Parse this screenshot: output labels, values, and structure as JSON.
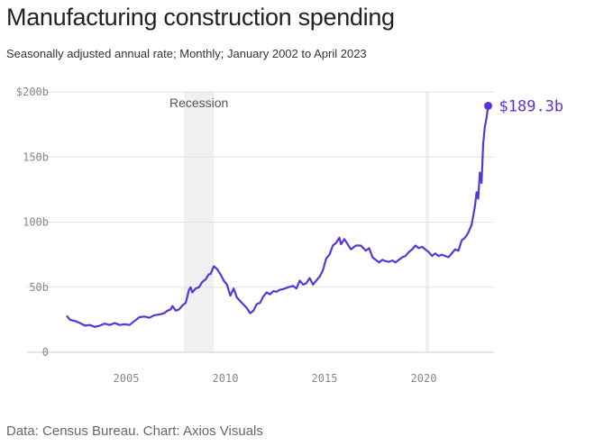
{
  "title": "Manufacturing construction spending",
  "subtitle": "Seasonally adjusted annual rate; Monthly; January 2002 to April 2023",
  "source": "Data: Census Bureau. Chart: Axios Visuals",
  "chart_data": {
    "type": "line",
    "title": "Manufacturing construction spending",
    "xlabel": "",
    "ylabel": "",
    "unit": "billions of dollars",
    "xlim": [
      "2002-01",
      "2023-04"
    ],
    "ylim": [
      0,
      200
    ],
    "grid": true,
    "y_ticks": [
      0,
      50,
      100,
      150,
      200
    ],
    "y_tick_labels": [
      "0",
      "50b",
      "100b",
      "150b",
      "$200b"
    ],
    "x_ticks": [
      2005,
      2010,
      2015,
      2020
    ],
    "x_tick_labels": [
      "2005",
      "2010",
      "2015",
      "2020"
    ],
    "line_color": "#5a35d6",
    "shaded_periods": [
      {
        "label": "Recession",
        "start": "2007-12",
        "end": "2009-06"
      },
      {
        "label": "",
        "start": "2020-02",
        "end": "2020-04"
      }
    ],
    "end_label": "$189.3b",
    "series": [
      {
        "points": [
          [
            "2002-01",
            28
          ],
          [
            "2002-03",
            25
          ],
          [
            "2002-06",
            24
          ],
          [
            "2002-09",
            22.5
          ],
          [
            "2002-12",
            20.5
          ],
          [
            "2003-03",
            21
          ],
          [
            "2003-06",
            19.5
          ],
          [
            "2003-09",
            20.5
          ],
          [
            "2003-12",
            22
          ],
          [
            "2004-03",
            21
          ],
          [
            "2004-06",
            22.5
          ],
          [
            "2004-09",
            21
          ],
          [
            "2004-12",
            21.5
          ],
          [
            "2005-03",
            21
          ],
          [
            "2005-06",
            24
          ],
          [
            "2005-09",
            27
          ],
          [
            "2005-12",
            27.5
          ],
          [
            "2006-03",
            26.5
          ],
          [
            "2006-06",
            28.5
          ],
          [
            "2006-09",
            29
          ],
          [
            "2006-12",
            30
          ],
          [
            "2007-02",
            32
          ],
          [
            "2007-04",
            33
          ],
          [
            "2007-05",
            35.5
          ],
          [
            "2007-07",
            32
          ],
          [
            "2007-09",
            33
          ],
          [
            "2007-11",
            36
          ],
          [
            "2008-01",
            38
          ],
          [
            "2008-03",
            48
          ],
          [
            "2008-04",
            50
          ],
          [
            "2008-05",
            46
          ],
          [
            "2008-07",
            49
          ],
          [
            "2008-09",
            50
          ],
          [
            "2008-11",
            54
          ],
          [
            "2009-01",
            56
          ],
          [
            "2009-03",
            60
          ],
          [
            "2009-04",
            60
          ],
          [
            "2009-06",
            66
          ],
          [
            "2009-08",
            64
          ],
          [
            "2009-10",
            60
          ],
          [
            "2009-12",
            55
          ],
          [
            "2010-02",
            52
          ],
          [
            "2010-04",
            43.5
          ],
          [
            "2010-06",
            49
          ],
          [
            "2010-08",
            42
          ],
          [
            "2010-11",
            38
          ],
          [
            "2011-02",
            34
          ],
          [
            "2011-04",
            30
          ],
          [
            "2011-06",
            32
          ],
          [
            "2011-08",
            37
          ],
          [
            "2011-10",
            38
          ],
          [
            "2011-12",
            43
          ],
          [
            "2012-02",
            46
          ],
          [
            "2012-04",
            44.5
          ],
          [
            "2012-06",
            47
          ],
          [
            "2012-08",
            46.5
          ],
          [
            "2012-10",
            48
          ],
          [
            "2012-12",
            48.5
          ],
          [
            "2013-03",
            50
          ],
          [
            "2013-06",
            51
          ],
          [
            "2013-08",
            49
          ],
          [
            "2013-10",
            55
          ],
          [
            "2013-12",
            52
          ],
          [
            "2014-02",
            53
          ],
          [
            "2014-04",
            57
          ],
          [
            "2014-06",
            52
          ],
          [
            "2014-08",
            55
          ],
          [
            "2014-10",
            58
          ],
          [
            "2014-12",
            63
          ],
          [
            "2015-02",
            72
          ],
          [
            "2015-04",
            75
          ],
          [
            "2015-06",
            82
          ],
          [
            "2015-08",
            84
          ],
          [
            "2015-10",
            88
          ],
          [
            "2015-11",
            83
          ],
          [
            "2016-01",
            87
          ],
          [
            "2016-03",
            83
          ],
          [
            "2016-05",
            79
          ],
          [
            "2016-08",
            82
          ],
          [
            "2016-11",
            82
          ],
          [
            "2017-02",
            78
          ],
          [
            "2017-04",
            80
          ],
          [
            "2017-06",
            73
          ],
          [
            "2017-08",
            71
          ],
          [
            "2017-10",
            69
          ],
          [
            "2017-12",
            71
          ],
          [
            "2018-02",
            70
          ],
          [
            "2018-04",
            69.5
          ],
          [
            "2018-06",
            70.5
          ],
          [
            "2018-08",
            69
          ],
          [
            "2018-10",
            71
          ],
          [
            "2018-12",
            73
          ],
          [
            "2019-02",
            74
          ],
          [
            "2019-04",
            77
          ],
          [
            "2019-06",
            79
          ],
          [
            "2019-08",
            82
          ],
          [
            "2019-10",
            80
          ],
          [
            "2019-12",
            81
          ],
          [
            "2020-02",
            79
          ],
          [
            "2020-04",
            77
          ],
          [
            "2020-06",
            74
          ],
          [
            "2020-08",
            76
          ],
          [
            "2020-10",
            74
          ],
          [
            "2020-12",
            75
          ],
          [
            "2021-02",
            74
          ],
          [
            "2021-04",
            73
          ],
          [
            "2021-06",
            76
          ],
          [
            "2021-08",
            79
          ],
          [
            "2021-10",
            78
          ],
          [
            "2021-12",
            86
          ],
          [
            "2022-02",
            88
          ],
          [
            "2022-04",
            92
          ],
          [
            "2022-06",
            98
          ],
          [
            "2022-08",
            112
          ],
          [
            "2022-09",
            123
          ],
          [
            "2022-10",
            118
          ],
          [
            "2022-11",
            138
          ],
          [
            "2022-12",
            130
          ],
          [
            "2023-01",
            160
          ],
          [
            "2023-02",
            173
          ],
          [
            "2023-03",
            180
          ],
          [
            "2023-04",
            189.3
          ]
        ]
      }
    ]
  }
}
